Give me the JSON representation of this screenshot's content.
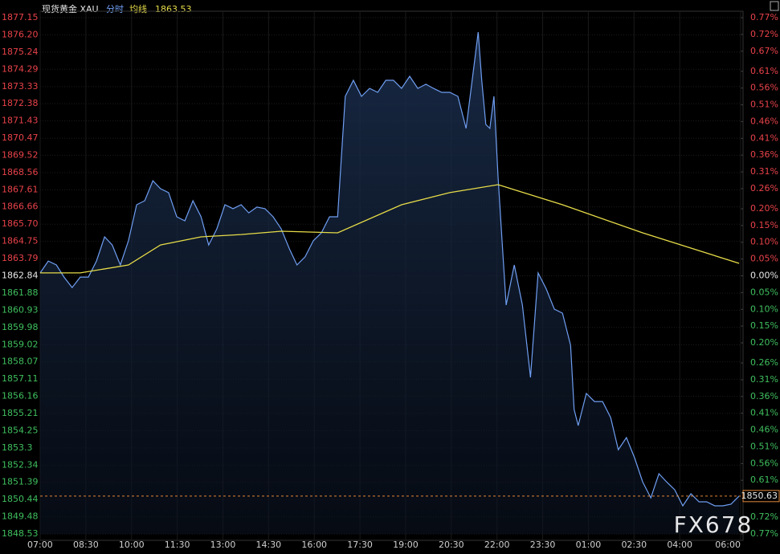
{
  "chart_data": {
    "type": "line",
    "title": "现货黄金 XAU",
    "watermark": "FX678",
    "xlim": [
      0,
      1380
    ],
    "xticks": [
      {
        "value": 0,
        "label": "07:00"
      },
      {
        "value": 90,
        "label": "08:30"
      },
      {
        "value": 180,
        "label": "10:00"
      },
      {
        "value": 270,
        "label": "11:30"
      },
      {
        "value": 360,
        "label": "13:00"
      },
      {
        "value": 450,
        "label": "14:30"
      },
      {
        "value": 540,
        "label": "16:00"
      },
      {
        "value": 630,
        "label": "17:30"
      },
      {
        "value": 720,
        "label": "19:00"
      },
      {
        "value": 810,
        "label": "20:30"
      },
      {
        "value": 900,
        "label": "22:00"
      },
      {
        "value": 990,
        "label": "23:30"
      },
      {
        "value": 1080,
        "label": "01:00"
      },
      {
        "value": 1170,
        "label": "02:30"
      },
      {
        "value": 1260,
        "label": "04:00"
      },
      {
        "value": 1380,
        "label": "06:00"
      }
    ],
    "ylim": [
      1848.53,
      1877.15
    ],
    "yticks": [
      1877.15,
      {
        "value": 1876.2,
        "label": "1876.20"
      },
      1875.24,
      1874.29,
      1873.33,
      1872.38,
      1871.43,
      1870.47,
      1869.52,
      1868.56,
      1867.61,
      1866.66,
      {
        "value": 1865.7,
        "label": "1865.70"
      },
      1864.75,
      1863.79,
      1862.84,
      1861.88,
      1860.93,
      1859.98,
      1859.02,
      1858.07,
      1857.11,
      1856.16,
      1855.21,
      1854.25,
      1853.3,
      1852.34,
      1851.39,
      1850.44,
      1849.48,
      1848.53
    ],
    "y2lim": [
      -0.77,
      0.77
    ],
    "y2ticks": [
      {
        "value": 0.77,
        "label": "0.77%"
      },
      {
        "value": 0.72,
        "label": "0.72%"
      },
      {
        "value": 0.67,
        "label": "0.67%"
      },
      {
        "value": 0.61,
        "label": "0.61%"
      },
      {
        "value": 0.56,
        "label": "0.56%"
      },
      {
        "value": 0.51,
        "label": "0.51%"
      },
      {
        "value": 0.46,
        "label": "0.46%"
      },
      {
        "value": 0.41,
        "label": "0.41%"
      },
      {
        "value": 0.36,
        "label": "0.36%"
      },
      {
        "value": 0.31,
        "label": "0.31%"
      },
      {
        "value": 0.26,
        "label": "0.26%"
      },
      {
        "value": 0.2,
        "label": "0.20%"
      },
      {
        "value": 0.15,
        "label": "0.15%"
      },
      {
        "value": 0.1,
        "label": "0.10%"
      },
      {
        "value": 0.05,
        "label": "0.05%"
      },
      {
        "value": 0,
        "label": "0.00%"
      },
      {
        "value": -0.05,
        "label": "0.05%"
      },
      {
        "value": -0.1,
        "label": "0.10%"
      },
      {
        "value": -0.15,
        "label": "0.15%"
      },
      {
        "value": -0.2,
        "label": "0.20%"
      },
      {
        "value": -0.26,
        "label": "0.26%"
      },
      {
        "value": -0.31,
        "label": "0.31%"
      },
      {
        "value": -0.36,
        "label": "0.36%"
      },
      {
        "value": -0.41,
        "label": "0.41%"
      },
      {
        "value": -0.46,
        "label": "0.46%"
      },
      {
        "value": -0.51,
        "label": "0.51%"
      },
      {
        "value": -0.56,
        "label": "0.56%"
      },
      {
        "value": -0.61,
        "label": "0.61%"
      },
      {
        "value": -0.72,
        "label": "0.72%"
      },
      {
        "value": -0.77,
        "label": "0.77%"
      }
    ],
    "grid": true,
    "series": [
      {
        "name": "分时",
        "color": "#6f9ef2",
        "x": [
          0,
          16,
          32,
          47,
          63,
          79,
          95,
          111,
          127,
          142,
          158,
          174,
          190,
          206,
          222,
          237,
          253,
          269,
          285,
          301,
          317,
          332,
          348,
          364,
          380,
          396,
          411,
          427,
          443,
          459,
          475,
          491,
          506,
          522,
          538,
          554,
          570,
          586,
          593,
          601,
          617,
          633,
          649,
          665,
          681,
          696,
          712,
          728,
          744,
          760,
          775,
          791,
          807,
          823,
          839,
          855,
          863,
          870,
          878,
          886,
          894,
          902,
          910,
          918,
          934,
          950,
          966,
          981,
          997,
          1013,
          1029,
          1045,
          1052,
          1060,
          1076,
          1092,
          1108,
          1124,
          1139,
          1155,
          1171,
          1187,
          1203,
          1219,
          1234,
          1250,
          1266,
          1282,
          1298,
          1313,
          1329,
          1345,
          1361,
          1377
        ],
        "values": [
          1863.0,
          1863.66,
          1863.44,
          1862.77,
          1862.19,
          1862.77,
          1862.77,
          1863.66,
          1865.0,
          1864.55,
          1863.44,
          1864.78,
          1866.78,
          1867.0,
          1868.11,
          1867.67,
          1867.45,
          1866.11,
          1865.89,
          1867.0,
          1866.11,
          1864.55,
          1865.44,
          1866.78,
          1866.56,
          1866.78,
          1866.33,
          1866.65,
          1866.56,
          1866.11,
          1865.44,
          1864.33,
          1863.44,
          1863.89,
          1864.78,
          1865.22,
          1866.11,
          1866.11,
          1869.23,
          1872.79,
          1873.68,
          1872.79,
          1873.23,
          1873.01,
          1873.68,
          1873.68,
          1873.23,
          1873.9,
          1873.23,
          1873.46,
          1873.23,
          1873.01,
          1873.01,
          1872.79,
          1871.01,
          1874.57,
          1876.35,
          1873.68,
          1871.23,
          1871.01,
          1872.79,
          1868.34,
          1864.78,
          1861.22,
          1863.44,
          1861.22,
          1857.21,
          1863.0,
          1862.11,
          1860.99,
          1860.77,
          1858.99,
          1855.43,
          1854.54,
          1856.32,
          1855.87,
          1855.87,
          1854.98,
          1853.2,
          1853.87,
          1852.76,
          1851.42,
          1850.53,
          1851.87,
          1851.42,
          1850.98,
          1850.09,
          1850.76,
          1850.31,
          1850.31,
          1850.09,
          1850.09,
          1850.18,
          1850.63
        ]
      },
      {
        "name": "均线",
        "color": "#e6dc48",
        "x": [
          0,
          79,
          174,
          237,
          317,
          396,
          475,
          586,
          712,
          807,
          902,
          1029,
          1187,
          1377
        ],
        "values": [
          1863.0,
          1863.0,
          1863.44,
          1864.55,
          1865.0,
          1865.13,
          1865.31,
          1865.22,
          1866.78,
          1867.45,
          1867.89,
          1866.78,
          1865.22,
          1863.53
        ]
      }
    ]
  }
}
